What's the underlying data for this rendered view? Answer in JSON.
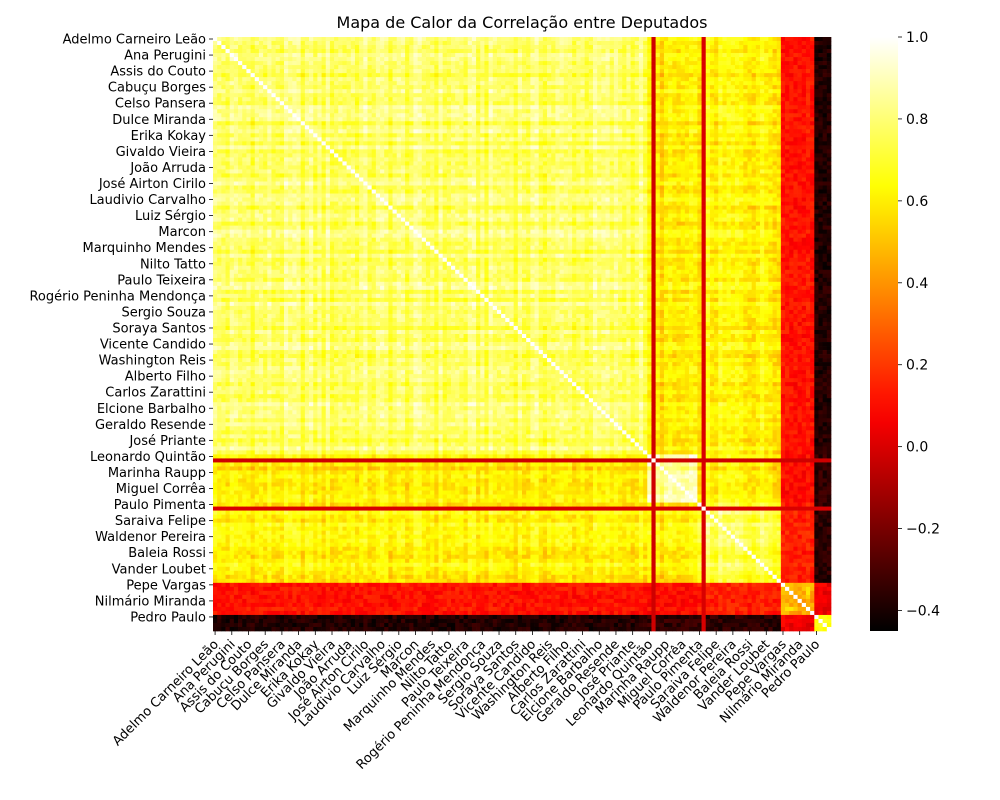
{
  "chart_data": {
    "type": "heatmap",
    "title": "Mapa de Calor da Correlação entre Deputados",
    "xlabel": "",
    "ylabel": "",
    "colormap": "hot",
    "colorbar_range": [
      -0.45,
      1.0
    ],
    "colorbar_ticks": [
      -0.4,
      -0.2,
      0.0,
      0.2,
      0.4,
      0.6,
      0.8,
      1.0
    ],
    "colorbar_tick_labels": [
      "−0.4",
      "−0.2",
      "0.0",
      "0.2",
      "0.4",
      "0.6",
      "0.8",
      "1.0"
    ],
    "tick_labels": [
      "Adelmo Carneiro Leão",
      "Ana Perugini",
      "Assis do Couto",
      "Cabuçu Borges",
      "Celso Pansera",
      "Dulce Miranda",
      "Erika Kokay",
      "Givaldo Vieira",
      "João Arruda",
      "José Airton Cirilo",
      "Laudivio Carvalho",
      "Luiz Sérgio",
      "Marcon",
      "Marquinho Mendes",
      "Nilto Tatto",
      "Paulo Teixeira",
      "Rogério Peninha Mendonça",
      "Sergio Souza",
      "Soraya Santos",
      "Vicente Candido",
      "Washington Reis",
      "Alberto Filho",
      "Carlos Zarattini",
      "Elcione Barbalho",
      "Geraldo Resende",
      "José Priante",
      "Leonardo Quintão",
      "Marinha Raupp",
      "Miguel Corrêa",
      "Paulo Pimenta",
      "Saraiva Felipe",
      "Waldenor Pereira",
      "Baleia Rossi",
      "Vander Loubet",
      "Pepe Vargas",
      "Nilmário Miranda",
      "Pedro Paulo"
    ],
    "n_members": 148,
    "tick_every": 4,
    "groups": [
      {
        "start": 0,
        "end": 103,
        "within": 0.78
      },
      {
        "start": 104,
        "end": 115,
        "within": 0.82
      },
      {
        "start": 116,
        "end": 135,
        "within": 0.76
      },
      {
        "start": 136,
        "end": 143,
        "within": 0.5
      },
      {
        "start": 144,
        "end": 147,
        "within": 0.7
      }
    ],
    "group_correlations": [
      {
        "a": 0,
        "b": 1,
        "value": 0.58
      },
      {
        "a": 0,
        "b": 2,
        "value": 0.62
      },
      {
        "a": 0,
        "b": 3,
        "value": 0.12
      },
      {
        "a": 0,
        "b": 4,
        "value": -0.38
      },
      {
        "a": 1,
        "b": 2,
        "value": 0.6
      },
      {
        "a": 1,
        "b": 3,
        "value": 0.1
      },
      {
        "a": 1,
        "b": 4,
        "value": -0.35
      },
      {
        "a": 2,
        "b": 3,
        "value": 0.15
      },
      {
        "a": 2,
        "b": 4,
        "value": -0.36
      },
      {
        "a": 3,
        "b": 4,
        "value": 0.05
      }
    ],
    "outliers": [
      {
        "index": 105,
        "value": -0.02
      },
      {
        "index": 117,
        "value": 0.0
      }
    ]
  }
}
